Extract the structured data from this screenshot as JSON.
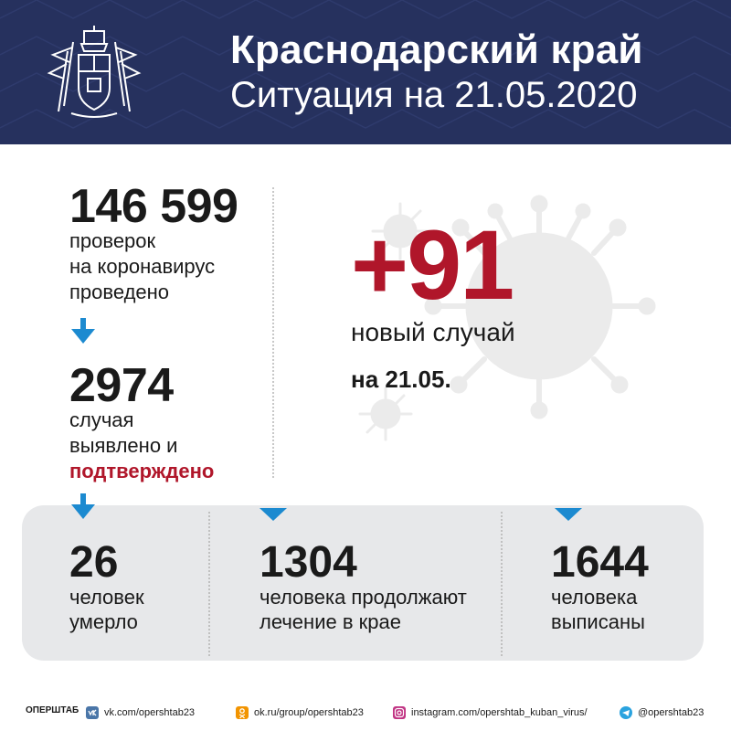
{
  "header": {
    "title": "Краснодарский край",
    "subtitle": "Ситуация на 21.05.2020"
  },
  "tests": {
    "value": "146 599",
    "desc_line1": "проверок",
    "desc_line2": "на коронавирус",
    "desc_line3": "проведено"
  },
  "cases": {
    "value": "2974",
    "desc_line1": "случая",
    "desc_line2": "выявлено и",
    "desc_line3": "подтверждено"
  },
  "new_cases": {
    "value": "+91",
    "label": "новый случай",
    "date": "на 21.05."
  },
  "stats": [
    {
      "value": "26",
      "line1": "человек",
      "line2": "умерло"
    },
    {
      "value": "1304",
      "line1": "человека продолжают",
      "line2": "лечение в крае"
    },
    {
      "value": "1644",
      "line1": "человека",
      "line2": "выписаны"
    }
  ],
  "footer": {
    "brand": "ОПЕРШТАБ",
    "links": [
      {
        "icon": "vk-icon",
        "text": "vk.com/opershtab23"
      },
      {
        "icon": "odnoklassniki-icon",
        "text": "ok.ru/group/opershtab23"
      },
      {
        "icon": "instagram-icon",
        "text": "instagram.com/opershtab_kuban_virus/"
      },
      {
        "icon": "telegram-icon",
        "text": "@opershtab23"
      }
    ]
  },
  "colors": {
    "header_bg": "#26315e",
    "accent_red": "#b0162a",
    "arrow_blue": "#1c8ad0",
    "band_bg": "#e7e8ea"
  }
}
